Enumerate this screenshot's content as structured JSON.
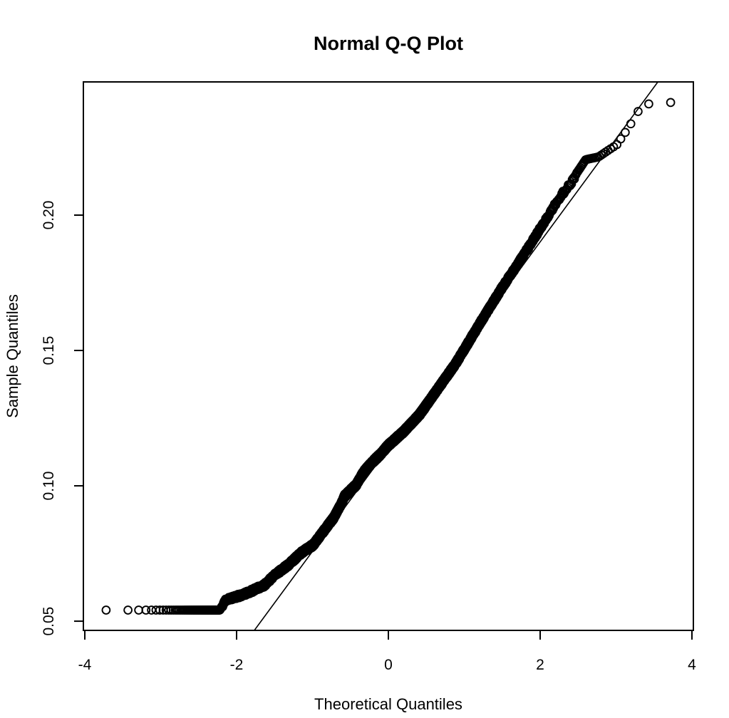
{
  "page": {
    "background_color": "#ffffff",
    "foreground_color": "#000000"
  },
  "chart_data": {
    "type": "scatter",
    "subtype": "normal-qq-plot",
    "title": "Normal Q-Q Plot",
    "xlabel": "Theoretical Quantiles",
    "ylabel": "Sample Quantiles",
    "xlim": [
      -4.019,
      4.019
    ],
    "ylim": [
      0.0466,
      0.2492
    ],
    "x_ticks": [
      {
        "value": -4,
        "label": "-4"
      },
      {
        "value": -2,
        "label": "-2"
      },
      {
        "value": 0,
        "label": "0"
      },
      {
        "value": 2,
        "label": "2"
      },
      {
        "value": 4,
        "label": "4"
      }
    ],
    "y_ticks": [
      {
        "value": 0.05,
        "label": "0.05"
      },
      {
        "value": 0.1,
        "label": "0.10"
      },
      {
        "value": 0.15,
        "label": "0.15"
      },
      {
        "value": 0.2,
        "label": "0.20"
      }
    ],
    "grid": false,
    "legend": null,
    "marker": {
      "shape": "open-circle",
      "radius_px": 5.4,
      "stroke_px": 1.9,
      "color": "#000000"
    },
    "n_points": 5000,
    "points_spec": "theoretical quantile t_i = qnorm((i-0.5)/n); sample quantile = linear interpolation of empirical_curve at t_i; lower tail is a flat floor of tied values at 0.0541",
    "empirical_curve": [
      [
        -3.73,
        0.0541
      ],
      [
        -2.22,
        0.0541
      ],
      [
        -2.15,
        0.0578
      ],
      [
        -1.95,
        0.0595
      ],
      [
        -1.83,
        0.0608
      ],
      [
        -1.64,
        0.0632
      ],
      [
        -1.49,
        0.0672
      ],
      [
        -1.31,
        0.071
      ],
      [
        -1.15,
        0.0752
      ],
      [
        -0.99,
        0.0782
      ],
      [
        -0.85,
        0.0834
      ],
      [
        -0.8,
        0.0853
      ],
      [
        -0.72,
        0.0882
      ],
      [
        -0.61,
        0.094
      ],
      [
        -0.58,
        0.0961
      ],
      [
        -0.42,
        0.1005
      ],
      [
        -0.33,
        0.105
      ],
      [
        -0.23,
        0.1082
      ],
      [
        -0.1,
        0.1118
      ],
      [
        0.0,
        0.115
      ],
      [
        0.2,
        0.12
      ],
      [
        0.42,
        0.1266
      ],
      [
        0.65,
        0.1358
      ],
      [
        0.89,
        0.1453
      ],
      [
        1.2,
        0.1597
      ],
      [
        1.48,
        0.1724
      ],
      [
        1.74,
        0.1834
      ],
      [
        1.99,
        0.1945
      ],
      [
        2.27,
        0.2071
      ],
      [
        2.4,
        0.2116
      ],
      [
        2.5,
        0.2163
      ],
      [
        2.6,
        0.2205
      ],
      [
        2.77,
        0.2215
      ],
      [
        2.9,
        0.224
      ],
      [
        3.02,
        0.2262
      ],
      [
        3.08,
        0.229
      ],
      [
        3.15,
        0.2316
      ],
      [
        3.31,
        0.2392
      ],
      [
        3.46,
        0.2415
      ],
      [
        3.73,
        0.2416
      ]
    ],
    "reference_line": {
      "slope": 0.0381,
      "intercept": 0.1139,
      "color": "#000000"
    }
  }
}
